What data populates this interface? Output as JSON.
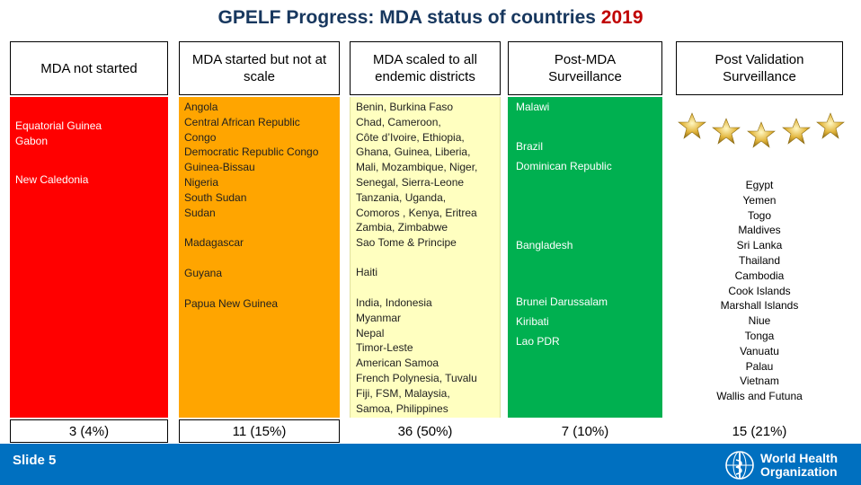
{
  "title": {
    "main": "GPELF Progress: MDA status of countries",
    "year": "2019"
  },
  "columns": [
    {
      "header": "MDA not started",
      "count": "3 (4%)",
      "color": "#ff0000",
      "groups": [
        [
          "Equatorial Guinea",
          "Gabon"
        ],
        [
          "New Caledonia"
        ]
      ]
    },
    {
      "header": "MDA started but not at scale",
      "count": "11 (15%)",
      "color": "#ffa500",
      "groups": [
        [
          "Angola",
          "Central African Republic",
          "Congo",
          "Democratic Republic Congo",
          "Guinea-Bissau",
          "Nigeria",
          "South Sudan",
          "Sudan"
        ],
        [
          "Madagascar"
        ],
        [
          "Guyana"
        ],
        [
          "Papua New Guinea"
        ]
      ]
    },
    {
      "header": "MDA scaled to all endemic districts",
      "count": "36 (50%)",
      "color": "#ffffc0",
      "groups": [
        [
          "Benin, Burkina Faso",
          "Chad, Cameroon,",
          "Côte d’Ivoire, Ethiopia,",
          "Ghana, Guinea, Liberia,",
          "Mali, Mozambique, Niger,",
          "Senegal, Sierra-Leone",
          "Tanzania, Uganda,",
          "Comoros , Kenya, Eritrea",
          "Zambia, Zimbabwe",
          "Sao Tome & Principe"
        ],
        [
          "Haiti"
        ],
        [
          "India, Indonesia",
          "Myanmar",
          "Nepal",
          "Timor-Leste",
          "American Samoa",
          "French Polynesia, Tuvalu",
          "Fiji, FSM, Malaysia,",
          "Samoa, Philippines"
        ]
      ]
    },
    {
      "header": "Post-MDA Surveillance",
      "count": "7 (10%)",
      "color": "#00b050",
      "groups": [
        [
          "Malawi"
        ],
        [
          "Brazil",
          "Dominican Republic"
        ],
        [
          "Bangladesh"
        ],
        [
          "Brunei Darussalam",
          "Kiribati",
          "Lao PDR"
        ]
      ]
    },
    {
      "header": "Post Validation Surveillance",
      "count": "15 (21%)",
      "color": "#ffffff",
      "groups": [
        [
          "Egypt",
          "Yemen",
          "Togo",
          "Maldives",
          "Sri Lanka",
          "Thailand",
          "Cambodia",
          "Cook Islands",
          "Marshall Islands",
          "Niue",
          "Tonga",
          "Vanuatu",
          "Palau",
          "Vietnam",
          "Wallis and Futuna"
        ]
      ]
    }
  ],
  "footer": {
    "slide": "Slide 5",
    "org_line1": "World Health",
    "org_line2": "Organization"
  },
  "icons": {
    "stars": "five-gold-stars",
    "logo": "who-emblem-icon"
  }
}
